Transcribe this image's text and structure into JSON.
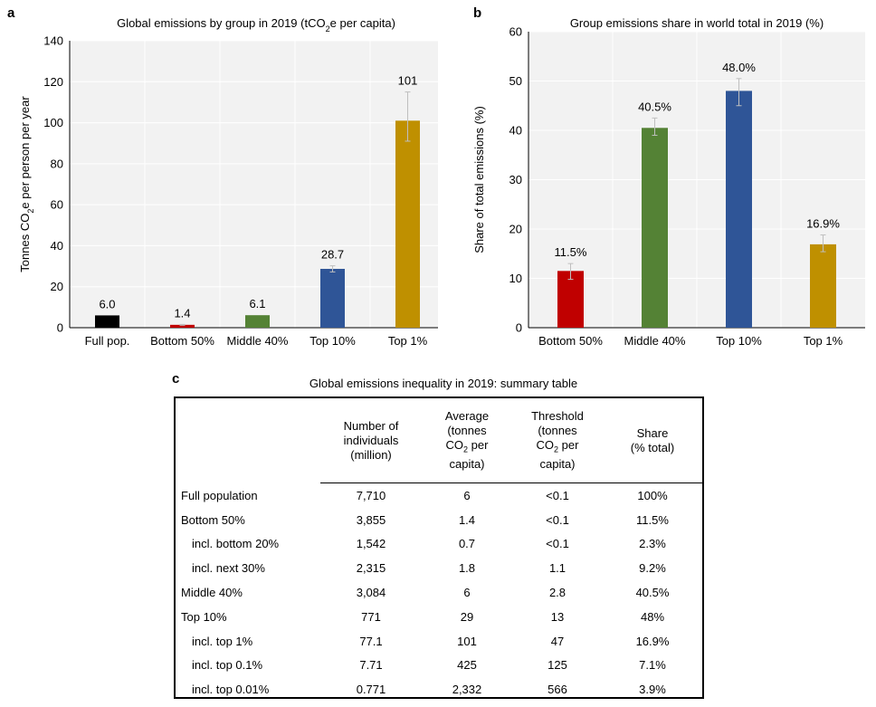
{
  "chart_data": [
    {
      "panel": "a",
      "type": "bar",
      "title": "Global emissions by group in 2019 (tCO2e per capita)",
      "ylabel": "Tonnes CO2e per person per year",
      "categories": [
        "Full pop.",
        "Bottom 50%",
        "Middle 40%",
        "Top 10%",
        "Top 1%"
      ],
      "values": [
        6.0,
        1.4,
        6.1,
        28.7,
        101
      ],
      "value_labels": [
        "6.0",
        "1.4",
        "6.1",
        "28.7",
        "101"
      ],
      "error_low": [
        null,
        1.2,
        null,
        27.2,
        91
      ],
      "error_high": [
        null,
        1.6,
        null,
        30.2,
        115
      ],
      "colors": [
        "#000000",
        "#c00000",
        "#548235",
        "#2f5597",
        "#bf9000"
      ],
      "ylim": [
        0,
        140
      ],
      "yticks": [
        0,
        20,
        40,
        60,
        80,
        100,
        120,
        140
      ],
      "grid": true
    },
    {
      "panel": "b",
      "type": "bar",
      "title": "Group emissions share in world total in 2019 (%)",
      "ylabel": "Share of total emissions (%)",
      "categories": [
        "Bottom 50%",
        "Middle 40%",
        "Top 10%",
        "Top 1%"
      ],
      "values": [
        11.5,
        40.5,
        48.0,
        16.9
      ],
      "value_labels": [
        "11.5%",
        "40.5%",
        "48.0%",
        "16.9%"
      ],
      "error_low": [
        9.8,
        39.0,
        45.0,
        15.4
      ],
      "error_high": [
        13.0,
        42.5,
        50.5,
        18.8
      ],
      "colors": [
        "#c00000",
        "#548235",
        "#2f5597",
        "#bf9000"
      ],
      "ylim": [
        0,
        60
      ],
      "yticks": [
        0,
        10,
        20,
        30,
        40,
        50,
        60
      ],
      "grid": true
    }
  ],
  "labels": {
    "panel_a": "a",
    "panel_b": "b",
    "panel_c": "c"
  },
  "summary_table": {
    "title": "Global emissions inequality in 2019: summary table",
    "headers": [
      "Number of individuals (million)",
      "Average (tonnes CO2 per capita)",
      "Threshold (tonnes CO2 per capita)",
      "Share (% total)"
    ],
    "rows": [
      {
        "label": "Full population",
        "indent": false,
        "cells": [
          "7,710",
          "6",
          "<0.1",
          "100%"
        ]
      },
      {
        "label": "Bottom 50%",
        "indent": false,
        "cells": [
          "3,855",
          "1.4",
          "<0.1",
          "11.5%"
        ]
      },
      {
        "label": "incl. bottom 20%",
        "indent": true,
        "cells": [
          "1,542",
          "0.7",
          "<0.1",
          "2.3%"
        ]
      },
      {
        "label": "incl. next 30%",
        "indent": true,
        "cells": [
          "2,315",
          "1.8",
          "1.1",
          "9.2%"
        ]
      },
      {
        "label": "Middle 40%",
        "indent": false,
        "cells": [
          "3,084",
          "6",
          "2.8",
          "40.5%"
        ]
      },
      {
        "label": "Top 10%",
        "indent": false,
        "cells": [
          "771",
          "29",
          "13",
          "48%"
        ]
      },
      {
        "label": "incl. top 1%",
        "indent": true,
        "cells": [
          "77.1",
          "101",
          "47",
          "16.9%"
        ]
      },
      {
        "label": "incl. top 0.1%",
        "indent": true,
        "cells": [
          "7.71",
          "425",
          "125",
          "7.1%"
        ]
      },
      {
        "label": "incl. top 0.01%",
        "indent": true,
        "cells": [
          "0.771",
          "2,332",
          "566",
          "3.9%"
        ]
      }
    ]
  }
}
